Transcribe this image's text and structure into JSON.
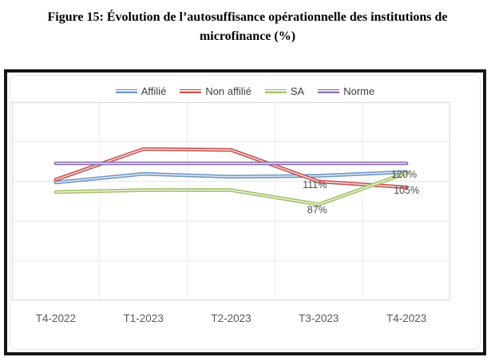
{
  "figure": {
    "title_line1": "Figure 15: Évolution de l’autosuffisance opérationnelle des institutions de",
    "title_line2": "microfinance (%)"
  },
  "chart_data": {
    "type": "line",
    "title": "Évolution de l’autosuffisance opérationnelle des institutions de microfinance (%)",
    "categories": [
      "T4-2022",
      "T1-2023",
      "T2-2023",
      "T3-2023",
      "T4-2023"
    ],
    "series": [
      {
        "name": "Affilié",
        "color": "#6E95C5",
        "values": [
          110,
          119,
          116,
          117,
          121
        ]
      },
      {
        "name": "Non affilié",
        "color": "#C4534E",
        "values": [
          113,
          145,
          144,
          111,
          105
        ]
      },
      {
        "name": "SA",
        "color": "#A2C065",
        "values": [
          100,
          102,
          102,
          87,
          120
        ]
      },
      {
        "name": "Norme",
        "color": "#8A6BAD",
        "values": [
          130,
          130,
          130,
          130,
          130
        ]
      }
    ],
    "point_labels": [
      {
        "series": "Non affilié",
        "category": "T3-2023",
        "text": "111%"
      },
      {
        "series": "SA",
        "category": "T3-2023",
        "text": "87%"
      },
      {
        "series": "SA",
        "category": "T4-2023",
        "text": "120%"
      },
      {
        "series": "Non affilié",
        "category": "T4-2023",
        "text": "105%"
      }
    ],
    "legend_position": "top",
    "grid": true,
    "y_axis_labels_visible": false,
    "label_color": "#4a4a4a",
    "axis_label_color": "#5a5a5a",
    "gridline_color": "#e6e6e6",
    "plot_border_color": "#d6d6d6"
  }
}
